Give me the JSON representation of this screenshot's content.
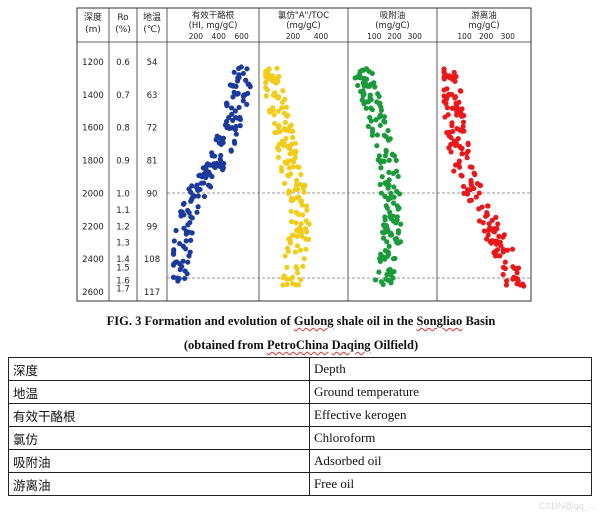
{
  "figure": {
    "columns": {
      "depth": {
        "label_zh": "深度",
        "unit": "(m)",
        "ticks": [
          "1200",
          "1400",
          "1600",
          "1800",
          "2000",
          "2200",
          "2400",
          "2600"
        ]
      },
      "ro": {
        "label": "Ro",
        "unit": "(%)",
        "ticks": [
          "0.6",
          "0.7",
          "0.8",
          "0.9",
          "1.0",
          "1.1",
          "1.2",
          "1.3",
          "1.4",
          "1.5",
          "1.6",
          "1.7"
        ]
      },
      "temp": {
        "label_zh": "地温",
        "unit": "(℃)",
        "ticks": [
          "54",
          "63",
          "72",
          "81",
          "90",
          "99",
          "108",
          "117"
        ]
      }
    },
    "panels": [
      {
        "title_zh": "有效干酪根",
        "subtitle": "(HI, mg/gC)",
        "ticks": [
          "200",
          "400",
          "600"
        ],
        "color": "#1c3a9c"
      },
      {
        "title_zh": "氯仿\"A\"/TOC",
        "subtitle": "(mg/gC)",
        "ticks": [
          "200",
          "400"
        ],
        "color": "#f2cc1d"
      },
      {
        "title_zh": "吸附油",
        "subtitle": "(mg/gC)",
        "ticks": [
          "100",
          "200",
          "300"
        ],
        "color": "#1a9a3b"
      },
      {
        "title_zh": "游离油",
        "subtitle": "mg/gC)",
        "ticks": [
          "100",
          "200",
          "300"
        ],
        "color": "#e8191a"
      }
    ]
  },
  "caption": {
    "line1_pre": "FIG. 3 Formation and evolution of ",
    "line1_w1": "Gulong",
    "line1_mid": " shale oil in the ",
    "line1_w2": "Songliao",
    "line1_post": " Basin",
    "line2_pre": "(obtained from ",
    "line2_w1": "PetroChina",
    "line2_mid": " ",
    "line2_w2": "Daqing",
    "line2_post": " Oilfield)"
  },
  "legend_table": {
    "rows": [
      {
        "zh": "深度",
        "en": "Depth"
      },
      {
        "zh": "地温",
        "en": "Ground temperature"
      },
      {
        "zh": "有效干酪根",
        "en": "Effective kerogen"
      },
      {
        "zh": "氯仿",
        "en": "Chloroform"
      },
      {
        "zh": "吸附油",
        "en": "Adsorbed oil"
      },
      {
        "zh": "游离油",
        "en": "Free oil"
      }
    ]
  },
  "watermark": "CSDN@qq_...",
  "chart_data": {
    "type": "scatter",
    "title": "Formation and evolution of Gulong shale oil in the Songliao Basin",
    "ylabel": "Depth (m)",
    "ylim": [
      1150,
      2650
    ],
    "y_ticks": [
      1200,
      1400,
      1600,
      1800,
      2000,
      2200,
      2400,
      2600
    ],
    "secondary_axes": {
      "Ro (%)": {
        "1200": 0.6,
        "1400": 0.7,
        "1600": 0.8,
        "1800": 0.9,
        "2000": 1.0,
        "2100": 1.1,
        "2200": 1.2,
        "2300": 1.3,
        "2400": 1.4,
        "2450": 1.5,
        "2530": 1.6,
        "2580": 1.7
      },
      "Ground temperature (℃)": {
        "1200": 54,
        "1400": 63,
        "1600": 72,
        "1800": 81,
        "2000": 90,
        "2200": 99,
        "2400": 108,
        "2600": 117
      }
    },
    "reference_lines_depth": [
      2000,
      2550
    ],
    "series": [
      {
        "name": "Effective kerogen HI (mg/gC)",
        "xlim": [
          0,
          700
        ],
        "x_ticks": [
          200,
          400,
          600
        ],
        "color": "#1c3a9c",
        "trend": [
          [
            1250,
            600
          ],
          [
            1400,
            580
          ],
          [
            1600,
            500
          ],
          [
            1800,
            400
          ],
          [
            2000,
            200
          ],
          [
            2200,
            100
          ],
          [
            2400,
            50
          ],
          [
            2550,
            30
          ]
        ]
      },
      {
        "name": "Chloroform \"A\"/TOC (mg/gC)",
        "xlim": [
          0,
          550
        ],
        "x_ticks": [
          200,
          400
        ],
        "color": "#f2cc1d",
        "trend": [
          [
            1250,
            40
          ],
          [
            1400,
            70
          ],
          [
            1600,
            130
          ],
          [
            1800,
            170
          ],
          [
            2000,
            230
          ],
          [
            2200,
            260
          ],
          [
            2400,
            210
          ],
          [
            2550,
            180
          ]
        ]
      },
      {
        "name": "Adsorbed oil (mg/gC)",
        "xlim": [
          0,
          380
        ],
        "x_ticks": [
          100,
          200,
          300
        ],
        "color": "#1a9a3b",
        "trend": [
          [
            1250,
            40
          ],
          [
            1400,
            80
          ],
          [
            1600,
            120
          ],
          [
            1800,
            160
          ],
          [
            2000,
            180
          ],
          [
            2200,
            190
          ],
          [
            2400,
            170
          ],
          [
            2550,
            140
          ]
        ]
      },
      {
        "name": "Free oil (mg/gC)",
        "xlim": [
          0,
          380
        ],
        "x_ticks": [
          100,
          200,
          300
        ],
        "color": "#e8191a",
        "trend": [
          [
            1250,
            20
          ],
          [
            1400,
            40
          ],
          [
            1600,
            60
          ],
          [
            1800,
            80
          ],
          [
            2000,
            140
          ],
          [
            2200,
            220
          ],
          [
            2400,
            300
          ],
          [
            2550,
            330
          ]
        ]
      }
    ]
  }
}
